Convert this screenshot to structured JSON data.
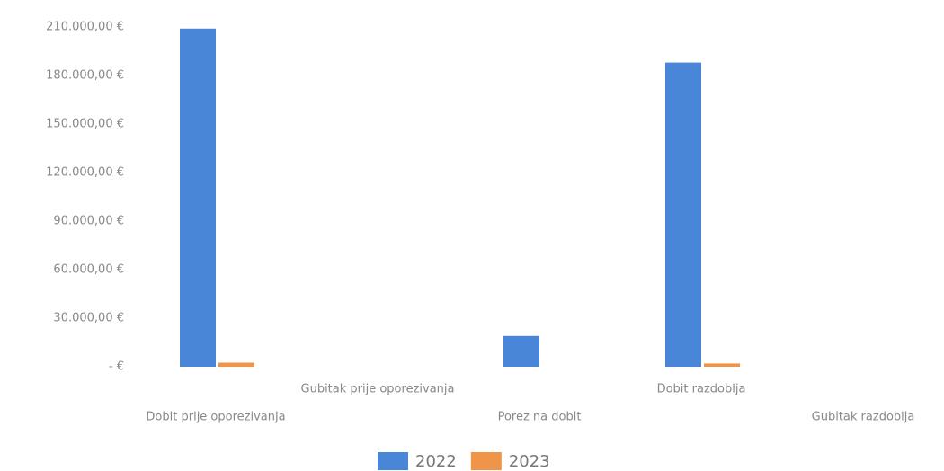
{
  "chart_data": {
    "type": "bar",
    "categories": [
      "Dobit prije oporezivanja",
      "Gubitak prije oporezivanja",
      "Porez na dobit",
      "Dobit razdoblja",
      "Gubitak razdoblja"
    ],
    "series": [
      {
        "name": "2022",
        "color": "#4a86d8",
        "values": [
          209000,
          0,
          19000,
          188000,
          0
        ]
      },
      {
        "name": "2023",
        "color": "#f0944a",
        "values": [
          2500,
          0,
          0,
          2000,
          0
        ]
      }
    ],
    "ylim": [
      0,
      210000
    ],
    "yticks": [
      {
        "value": 0,
        "label": "-   €"
      },
      {
        "value": 30000,
        "label": "30.000,00 €"
      },
      {
        "value": 60000,
        "label": "60.000,00 €"
      },
      {
        "value": 90000,
        "label": "90.000,00 €"
      },
      {
        "value": 120000,
        "label": "120.000,00 €"
      },
      {
        "value": 150000,
        "label": "150.000,00 €"
      },
      {
        "value": 180000,
        "label": "180.000,00 €"
      },
      {
        "value": 210000,
        "label": "210.000,00 €"
      }
    ],
    "grid": false,
    "legend": "bottom"
  }
}
